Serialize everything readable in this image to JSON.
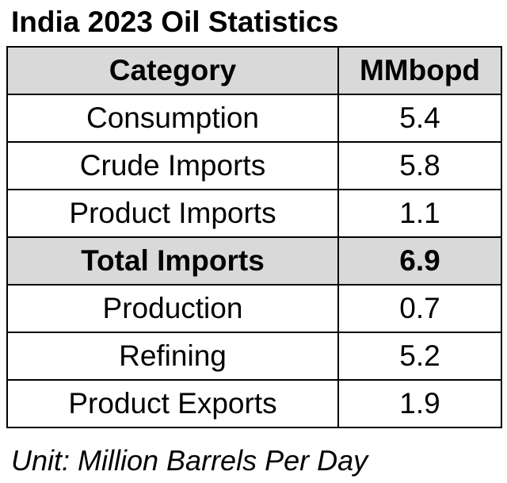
{
  "title": "India 2023 Oil Statistics",
  "table": {
    "headers": [
      "Category",
      "MMbopd"
    ],
    "rows": [
      {
        "category": "Consumption",
        "value": "5.4"
      },
      {
        "category": "Crude Imports",
        "value": "5.8"
      },
      {
        "category": "Product Imports",
        "value": "1.1"
      },
      {
        "category": "Total Imports",
        "value": "6.9",
        "highlight": true
      },
      {
        "category": "Production",
        "value": "0.7"
      },
      {
        "category": "Refining",
        "value": "5.2"
      },
      {
        "category": "Product Exports",
        "value": "1.9"
      }
    ],
    "shade_color": "#d9d9d9",
    "border_color": "#000000"
  },
  "footnote": "Unit: Million Barrels Per Day"
}
